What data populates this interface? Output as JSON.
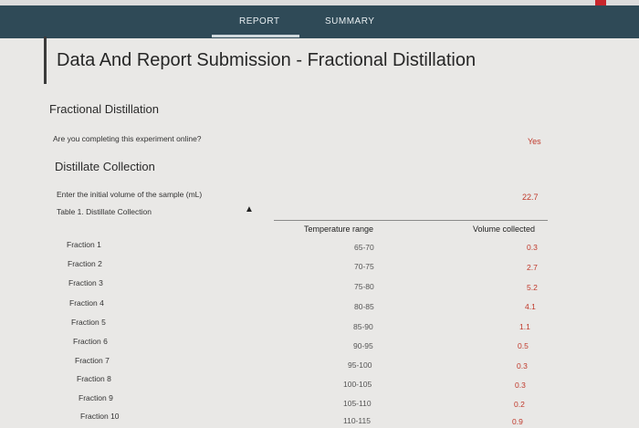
{
  "nav": {
    "tabs": [
      {
        "label": "REPORT"
      },
      {
        "label": "SUMMARY"
      }
    ]
  },
  "page": {
    "title": "Data And Report Submission - Fractional Distillation"
  },
  "section1": {
    "title": "Fractional Distillation",
    "question": "Are you completing this experiment online?",
    "answer": "Yes"
  },
  "section2": {
    "title": "Distillate Collection",
    "initial_volume_label": "Enter the initial volume of the sample (mL)",
    "initial_volume_value": "22.7",
    "table_caption": "Table 1. Distillate Collection",
    "columns": {
      "temperature": "Temperature range",
      "volume": "Volume collected"
    },
    "rows": [
      {
        "fraction": "Fraction 1",
        "temp": "65-70",
        "volume": "0.3"
      },
      {
        "fraction": "Fraction 2",
        "temp": "70-75",
        "volume": "2.7"
      },
      {
        "fraction": "Fraction 3",
        "temp": "75-80",
        "volume": "5.2"
      },
      {
        "fraction": "Fraction 4",
        "temp": "80-85",
        "volume": "4.1"
      },
      {
        "fraction": "Fraction 5",
        "temp": "85-90",
        "volume": "1.1"
      },
      {
        "fraction": "Fraction 6",
        "temp": "90-95",
        "volume": "0.5"
      },
      {
        "fraction": "Fraction 7",
        "temp": "95-100",
        "volume": "0.3"
      },
      {
        "fraction": "Fraction 8",
        "temp": "100-105",
        "volume": "0.3"
      },
      {
        "fraction": "Fraction 9",
        "temp": "105-110",
        "volume": "0.2"
      },
      {
        "fraction": "Fraction 10",
        "temp": "110-115",
        "volume": "0.9"
      }
    ]
  }
}
